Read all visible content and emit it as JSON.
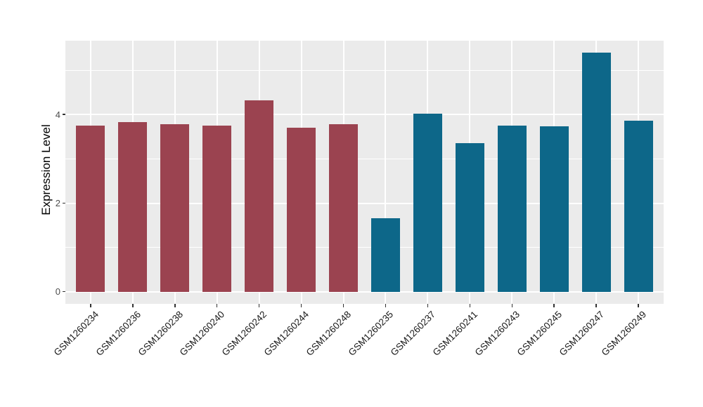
{
  "chart_data": {
    "type": "bar",
    "title": "",
    "xlabel": "",
    "ylabel": "Expression Level",
    "categories": [
      "GSM1260234",
      "GSM1260236",
      "GSM1260238",
      "GSM1260240",
      "GSM1260242",
      "GSM1260244",
      "GSM1260248",
      "GSM1260235",
      "GSM1260237",
      "GSM1260241",
      "GSM1260243",
      "GSM1260245",
      "GSM1260247",
      "GSM1260249"
    ],
    "values": [
      3.76,
      3.83,
      3.78,
      3.76,
      4.33,
      3.71,
      3.78,
      1.67,
      4.03,
      3.35,
      3.76,
      3.73,
      5.4,
      3.86
    ],
    "bar_groups": [
      "maroon",
      "maroon",
      "maroon",
      "maroon",
      "maroon",
      "maroon",
      "maroon",
      "teal",
      "teal",
      "teal",
      "teal",
      "teal",
      "teal",
      "teal"
    ],
    "group_colors": {
      "maroon": "#9B4350",
      "teal": "#0D6789"
    },
    "ytick_labels": [
      "0",
      "2",
      "4"
    ],
    "ytick_values": [
      0,
      2,
      4
    ],
    "minor_gridline_values": [
      1,
      3,
      5
    ],
    "ylim": [
      -0.27,
      5.67
    ],
    "legend": "none",
    "grid": "major-and-minor-horizontal, major-vertical-at-categories",
    "panel_background": "#EBEBEB",
    "gridline_color": "#FFFFFF",
    "tick_color": "#333333",
    "axis_text_color": "#4D4D4D"
  }
}
